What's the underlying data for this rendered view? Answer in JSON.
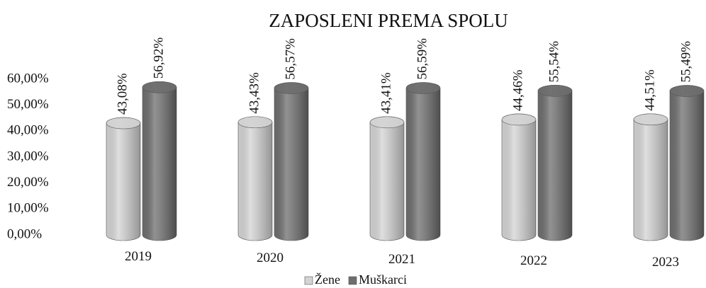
{
  "chart_data": {
    "type": "bar",
    "title": "ZAPOSLENI PREMA SPOLU",
    "categories": [
      "2019",
      "2020",
      "2021",
      "2022",
      "2023"
    ],
    "series": [
      {
        "name": "Žene",
        "color": "#d4d4d4",
        "values": [
          43.08,
          43.43,
          43.41,
          44.46,
          44.51
        ],
        "value_labels": [
          "43,08%",
          "43,43%",
          "43,41%",
          "44,46%",
          "44,51%"
        ]
      },
      {
        "name": "Muškarci",
        "color": "#6e6e6e",
        "values": [
          56.92,
          56.57,
          56.59,
          55.54,
          55.49
        ],
        "value_labels": [
          "56,92%",
          "56,57%",
          "56,59%",
          "55,54%",
          "55,49%"
        ]
      }
    ],
    "ylim": [
      0,
      60
    ],
    "yticks": [
      {
        "value": 0,
        "label": "0,00%"
      },
      {
        "value": 10,
        "label": "10,00%"
      },
      {
        "value": 20,
        "label": "20,00%"
      },
      {
        "value": 30,
        "label": "30,00%"
      },
      {
        "value": 40,
        "label": "40,00%"
      },
      {
        "value": 50,
        "label": "50,00%"
      },
      {
        "value": 60,
        "label": "60,00%"
      }
    ],
    "grid": false,
    "legend": "bottom"
  }
}
